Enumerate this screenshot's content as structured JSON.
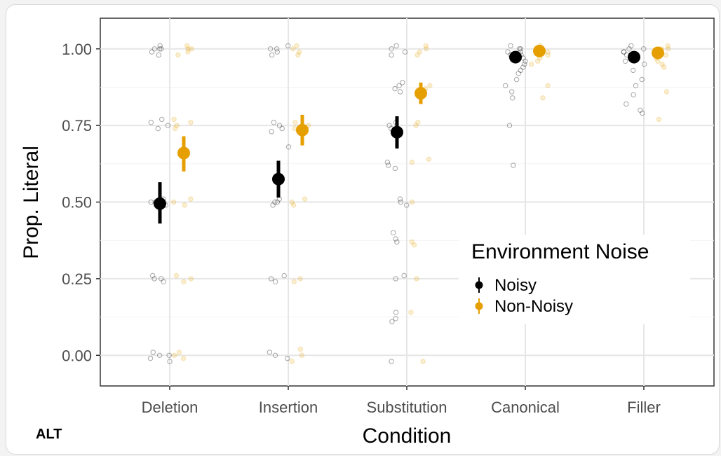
{
  "badge": "ALT",
  "chart_data": {
    "type": "scatter",
    "title": "",
    "xlabel": "Condition",
    "ylabel": "Prop. Literal",
    "categories": [
      "Deletion",
      "Insertion",
      "Substitution",
      "Canonical",
      "Filler"
    ],
    "y_ticks": [
      "0.00",
      "0.25",
      "0.50",
      "0.75",
      "1.00"
    ],
    "ylim": [
      -0.1,
      1.1
    ],
    "grid": true,
    "legend": {
      "title": "Environment Noise",
      "position": "right"
    },
    "series": [
      {
        "name": "Noisy",
        "color": "#000000",
        "mean": [
          0.495,
          0.575,
          0.728,
          0.973,
          0.973
        ],
        "ci_low": [
          0.43,
          0.515,
          0.675,
          0.963,
          0.963
        ],
        "ci_high": [
          0.565,
          0.635,
          0.78,
          0.983,
          0.983
        ],
        "raw_points": [
          {
            "category": "Deletion",
            "values": [
              1.0,
              1.0,
              0.99,
              1.0,
              0.98,
              1.01,
              0.76,
              0.75,
              0.77,
              0.74,
              0.5,
              0.49,
              0.51,
              0.5,
              0.48,
              0.25,
              0.24,
              0.26,
              0.25,
              0.0,
              0.01,
              -0.01,
              0.0,
              -0.02
            ]
          },
          {
            "category": "Insertion",
            "values": [
              1.0,
              0.99,
              1.01,
              0.98,
              1.0,
              0.75,
              0.74,
              0.76,
              0.73,
              0.68,
              0.5,
              0.49,
              0.51,
              0.5,
              0.25,
              0.26,
              0.24,
              0.0,
              0.01,
              -0.01
            ]
          },
          {
            "category": "Substitution",
            "values": [
              1.0,
              0.99,
              1.01,
              0.98,
              0.88,
              0.87,
              0.89,
              0.86,
              0.75,
              0.74,
              0.76,
              0.62,
              0.63,
              0.61,
              0.5,
              0.51,
              0.49,
              0.4,
              0.38,
              0.37,
              0.25,
              0.26,
              0.14,
              0.12,
              0.11,
              -0.02
            ]
          },
          {
            "category": "Canonical",
            "values": [
              1.0,
              0.99,
              1.01,
              0.98,
              0.97,
              0.96,
              0.95,
              0.94,
              0.93,
              0.92,
              0.9,
              0.88,
              0.86,
              0.84,
              0.75,
              0.62,
              1.0,
              0.99,
              0.98
            ]
          },
          {
            "category": "Filler",
            "values": [
              1.0,
              0.99,
              1.01,
              0.98,
              0.97,
              0.96,
              0.95,
              0.93,
              0.9,
              0.88,
              0.85,
              0.82,
              0.8,
              0.79,
              1.0,
              0.99,
              0.98
            ]
          }
        ]
      },
      {
        "name": "Non-Noisy",
        "color": "#E69F00",
        "mean": [
          0.66,
          0.735,
          0.855,
          0.993,
          0.987
        ],
        "ci_low": [
          0.6,
          0.685,
          0.82,
          0.985,
          0.979
        ],
        "ci_high": [
          0.715,
          0.785,
          0.89,
          1.001,
          0.995
        ],
        "raw_points": [
          {
            "category": "Deletion",
            "values": [
              1.0,
              0.99,
              1.01,
              1.0,
              0.98,
              0.76,
              0.75,
              0.77,
              0.74,
              0.5,
              0.49,
              0.51,
              0.25,
              0.26,
              0.24,
              0.0,
              0.01,
              -0.01
            ]
          },
          {
            "category": "Insertion",
            "values": [
              1.0,
              0.99,
              1.01,
              0.98,
              0.75,
              0.74,
              0.76,
              0.5,
              0.51,
              0.49,
              0.25,
              0.24,
              0.0,
              0.02,
              -0.02
            ]
          },
          {
            "category": "Substitution",
            "values": [
              1.0,
              0.99,
              1.01,
              0.98,
              0.88,
              0.87,
              0.86,
              0.75,
              0.76,
              0.63,
              0.64,
              0.5,
              0.37,
              0.36,
              0.25,
              0.14,
              -0.02
            ]
          },
          {
            "category": "Canonical",
            "values": [
              1.0,
              0.99,
              1.01,
              0.98,
              0.97,
              0.96,
              0.95,
              0.88,
              0.84,
              1.0,
              0.99
            ]
          },
          {
            "category": "Filler",
            "values": [
              1.0,
              0.99,
              1.01,
              0.98,
              0.97,
              0.96,
              0.95,
              0.94,
              0.86,
              0.77,
              1.0
            ]
          }
        ]
      }
    ]
  }
}
